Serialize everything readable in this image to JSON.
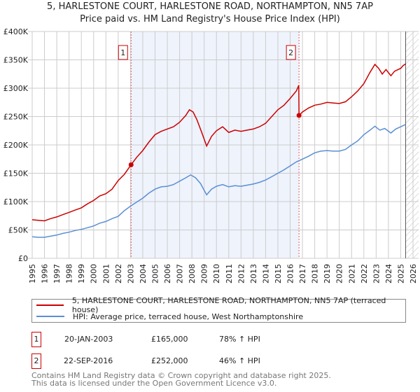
{
  "chart_data": {
    "type": "line",
    "title": "5, HARLESTONE COURT, HARLESTONE ROAD, NORTHAMPTON, NN5 7AP",
    "subtitle": "Price paid vs. HM Land Registry's House Price Index (HPI)",
    "xlim": [
      1995,
      2026
    ],
    "ylim": [
      0,
      400000
    ],
    "y_ticks": [
      {
        "v": 0,
        "label": "£0"
      },
      {
        "v": 50000,
        "label": "£50K"
      },
      {
        "v": 100000,
        "label": "£100K"
      },
      {
        "v": 150000,
        "label": "£150K"
      },
      {
        "v": 200000,
        "label": "£200K"
      },
      {
        "v": 250000,
        "label": "£250K"
      },
      {
        "v": 300000,
        "label": "£300K"
      },
      {
        "v": 350000,
        "label": "£350K"
      },
      {
        "v": 400000,
        "label": "£400K"
      }
    ],
    "x_ticks": [
      "1995",
      "1996",
      "1997",
      "1998",
      "1999",
      "2000",
      "2001",
      "2002",
      "2003",
      "2004",
      "2005",
      "2006",
      "2007",
      "2008",
      "2009",
      "2010",
      "2011",
      "2012",
      "2013",
      "2014",
      "2015",
      "2016",
      "2017",
      "2018",
      "2019",
      "2020",
      "2021",
      "2022",
      "2023",
      "2024",
      "2025",
      "2026"
    ],
    "grid": true,
    "shaded_range": [
      2003.05,
      2016.72
    ],
    "forecast_hatch_from": 2025.4,
    "series": [
      {
        "name": "5, HARLESTONE COURT, HARLESTONE ROAD, NORTHAMPTON, NN5 7AP (terraced house)",
        "color": "#cc0000",
        "x": [
          1995,
          1995.5,
          1996,
          1996.5,
          1997,
          1997.5,
          1998,
          1998.5,
          1999,
          1999.5,
          2000,
          2000.5,
          2001,
          2001.5,
          2002,
          2002.5,
          2003.05,
          2003.5,
          2004,
          2004.5,
          2005,
          2005.5,
          2006,
          2006.5,
          2007,
          2007.5,
          2007.8,
          2008.1,
          2008.4,
          2008.8,
          2009.2,
          2009.6,
          2010,
          2010.5,
          2011,
          2011.5,
          2012,
          2012.5,
          2013,
          2013.5,
          2014,
          2014.5,
          2015,
          2015.5,
          2016,
          2016.5,
          2016.7,
          2016.72,
          2017,
          2017.5,
          2018,
          2018.5,
          2019,
          2019.5,
          2020,
          2020.5,
          2021,
          2021.5,
          2022,
          2022.5,
          2022.9,
          2023.2,
          2023.5,
          2023.8,
          2024.2,
          2024.5,
          2025,
          2025.2,
          2025.4
        ],
        "y": [
          68000,
          67000,
          66000,
          70000,
          73000,
          77000,
          81000,
          85000,
          89000,
          96000,
          102000,
          110000,
          114000,
          122000,
          137000,
          148000,
          165000,
          178000,
          190000,
          205000,
          218000,
          224000,
          228000,
          232000,
          240000,
          252000,
          262000,
          258000,
          245000,
          222000,
          198000,
          215000,
          225000,
          232000,
          222000,
          226000,
          224000,
          226000,
          228000,
          232000,
          238000,
          250000,
          262000,
          270000,
          282000,
          295000,
          305000,
          252000,
          258000,
          265000,
          270000,
          272000,
          275000,
          274000,
          273000,
          276000,
          285000,
          295000,
          308000,
          328000,
          342000,
          335000,
          325000,
          333000,
          322000,
          330000,
          335000,
          340000,
          343000
        ]
      },
      {
        "name": "HPI: Average price, terraced house, West Northamptonshire",
        "color": "#5b8fd4",
        "x": [
          1995,
          1995.5,
          1996,
          1996.5,
          1997,
          1997.5,
          1998,
          1998.5,
          1999,
          1999.5,
          2000,
          2000.5,
          2001,
          2001.5,
          2002,
          2002.5,
          2003,
          2003.5,
          2004,
          2004.5,
          2005,
          2005.5,
          2006,
          2006.5,
          2007,
          2007.5,
          2007.9,
          2008.3,
          2008.7,
          2009.2,
          2009.6,
          2010,
          2010.5,
          2011,
          2011.5,
          2012,
          2012.5,
          2013,
          2013.5,
          2014,
          2014.5,
          2015,
          2015.5,
          2016,
          2016.5,
          2017,
          2017.5,
          2018,
          2018.5,
          2019,
          2019.5,
          2020,
          2020.5,
          2021,
          2021.5,
          2022,
          2022.5,
          2022.9,
          2023.3,
          2023.7,
          2024.2,
          2024.6,
          2025,
          2025.4
        ],
        "y": [
          38000,
          37000,
          37000,
          39000,
          41000,
          44000,
          46000,
          49000,
          51000,
          54000,
          57000,
          62000,
          65000,
          70000,
          74000,
          84000,
          92000,
          99000,
          106000,
          115000,
          122000,
          126000,
          127000,
          130000,
          136000,
          142000,
          147000,
          142000,
          132000,
          112000,
          122000,
          127000,
          130000,
          126000,
          128000,
          127000,
          129000,
          131000,
          134000,
          138000,
          144000,
          150000,
          156000,
          163000,
          170000,
          175000,
          180000,
          186000,
          189000,
          190000,
          189000,
          189000,
          192000,
          200000,
          207000,
          218000,
          226000,
          233000,
          226000,
          229000,
          221000,
          228000,
          232000,
          236000
        ]
      }
    ],
    "markers": [
      {
        "label": "1",
        "x": 2003.05,
        "y": 165000
      },
      {
        "label": "2",
        "x": 2016.72,
        "y": 252000
      }
    ]
  },
  "table": [
    {
      "num": "1",
      "date": "20-JAN-2003",
      "price": "£165,000",
      "hpi": "78% ↑ HPI"
    },
    {
      "num": "2",
      "date": "22-SEP-2016",
      "price": "£252,000",
      "hpi": "46% ↑ HPI"
    }
  ],
  "footer": {
    "line1": "Contains HM Land Registry data © Crown copyright and database right 2025.",
    "line2": "This data is licensed under the Open Government Licence v3.0."
  }
}
